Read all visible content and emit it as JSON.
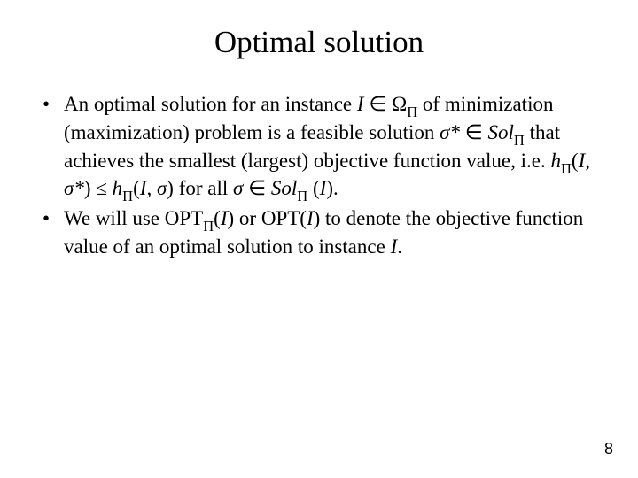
{
  "title": "Optimal solution",
  "bullets": [
    "An optimal solution for an instance <span class=\"it\">I</span> &isin; &Omega;<span class=\"sub\">&Pi;</span> of minimization (maximization) problem is a feasible solution <span class=\"it\">&sigma;*</span> &isin; <span class=\"it\">Sol</span><span class=\"sub\">&Pi;</span> that achieves the smallest (largest) objective function value, i.e. <span class=\"it\">h</span><span class=\"sub\">&Pi;</span>(<span class=\"it\">I</span>, <span class=\"it\">&sigma;*</span>) &le; <span class=\"it\">h</span><span class=\"sub\">&Pi;</span>(<span class=\"it\">I</span>, <span class=\"it\">&sigma;</span>) for all <span class=\"it\">&sigma;</span> &isin; <span class=\"it\">Sol</span><span class=\"sub\">&Pi;</span> (<span class=\"it\">I</span>).",
    "We will use OPT<span class=\"sub\">&Pi;</span>(<span class=\"it\">I</span>) or OPT(<span class=\"it\">I</span>) to denote the objective function value of an optimal solution to instance <span class=\"it\">I</span>."
  ],
  "page_number": "8",
  "colors": {
    "background": "#ffffff",
    "text": "#000000"
  },
  "fonts": {
    "title_size_pt": 35,
    "body_size_pt": 23,
    "pagenum_size_pt": 18
  }
}
